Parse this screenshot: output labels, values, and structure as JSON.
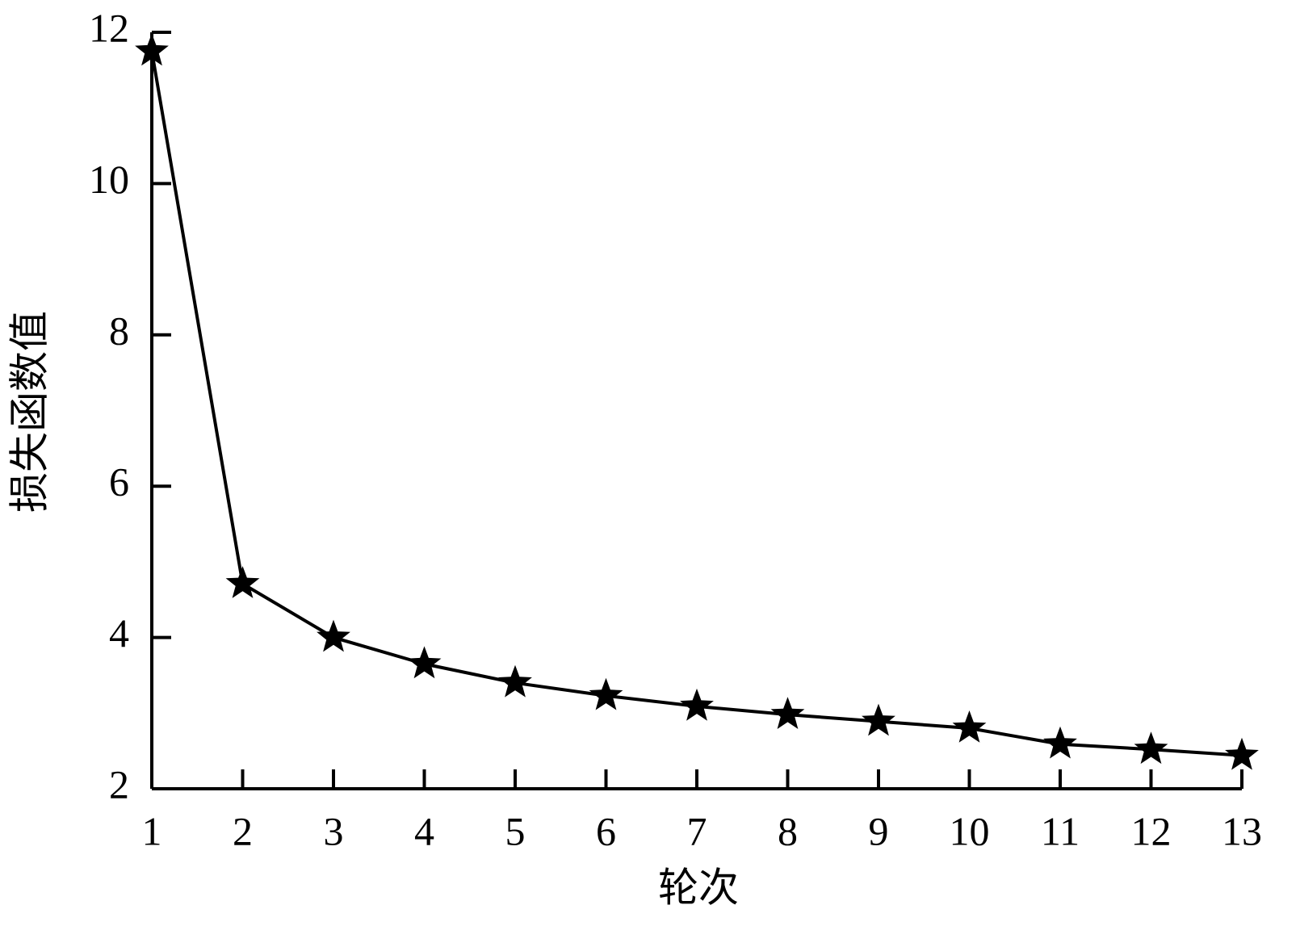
{
  "chart_data": {
    "type": "line",
    "x_label": "轮次",
    "y_label": "损失函数值",
    "x": [
      1,
      2,
      3,
      4,
      5,
      6,
      7,
      8,
      9,
      10,
      11,
      12,
      13
    ],
    "values": [
      11.75,
      4.71,
      4.0,
      3.65,
      3.4,
      3.23,
      3.09,
      2.98,
      2.89,
      2.8,
      2.59,
      2.52,
      2.44
    ],
    "color": "#000000",
    "marker": "star",
    "xlim": [
      1,
      13
    ],
    "xticks": [
      1,
      2,
      3,
      4,
      5,
      6,
      7,
      8,
      9,
      10,
      11,
      12,
      13
    ],
    "ylim": [
      2,
      12
    ],
    "yticks": [
      2,
      4,
      6,
      8,
      10,
      12
    ]
  }
}
